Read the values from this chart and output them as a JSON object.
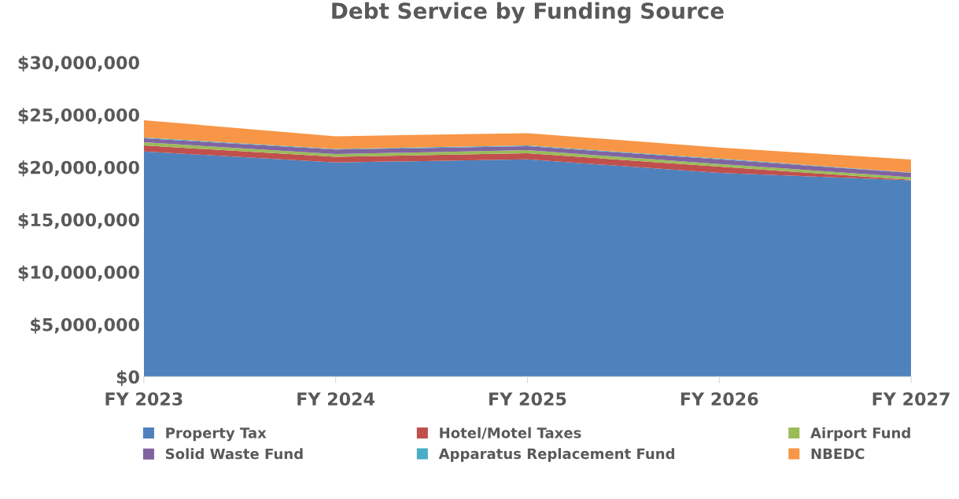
{
  "chart_data": {
    "type": "area",
    "stacked": true,
    "title": "Debt Service by Funding Source",
    "categories": [
      "FY 2023",
      "FY 2024",
      "FY 2025",
      "FY 2026",
      "FY 2027"
    ],
    "series": [
      {
        "name": "Property Tax",
        "color": "#4f81bd",
        "values": [
          21500000,
          20450000,
          20750000,
          19450000,
          18750000
        ]
      },
      {
        "name": "Hotel/Motel Taxes",
        "color": "#c0504d",
        "values": [
          570000,
          550000,
          570000,
          600000,
          50000
        ]
      },
      {
        "name": "Airport Fund",
        "color": "#9bbb59",
        "values": [
          300000,
          250000,
          300000,
          250000,
          250000
        ]
      },
      {
        "name": "Solid Waste Fund",
        "color": "#8064a2",
        "values": [
          380000,
          430000,
          380000,
          450000,
          400000
        ]
      },
      {
        "name": "Apparatus Replacement Fund",
        "color": "#4bacc6",
        "values": [
          80000,
          70000,
          70000,
          70000,
          50000
        ]
      },
      {
        "name": "NBEDC",
        "color": "#f79646",
        "values": [
          1650000,
          1200000,
          1180000,
          1060000,
          1220000
        ]
      }
    ],
    "ylim": [
      0,
      30000000
    ],
    "yticks": [
      {
        "value": 0,
        "label": "$0"
      },
      {
        "value": 5000000,
        "label": "$5,000,000"
      },
      {
        "value": 10000000,
        "label": "$10,000,000"
      },
      {
        "value": 15000000,
        "label": "$15,000,000"
      },
      {
        "value": 20000000,
        "label": "$20,000,000"
      },
      {
        "value": 25000000,
        "label": "$25,000,000"
      },
      {
        "value": 30000000,
        "label": "$30,000,000"
      }
    ],
    "grid": false,
    "legend": "bottom"
  }
}
